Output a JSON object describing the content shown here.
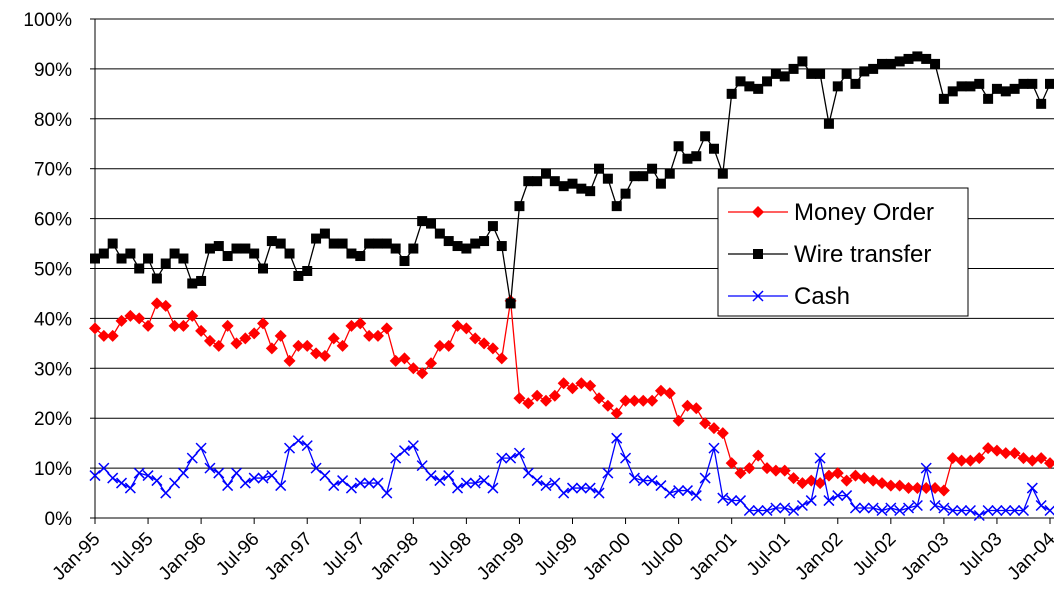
{
  "chart_data": {
    "type": "line",
    "categories": [
      "Jan-95",
      null,
      null,
      null,
      null,
      null,
      "Jul-95",
      null,
      null,
      null,
      null,
      null,
      "Jan-96",
      null,
      null,
      null,
      null,
      null,
      "Jul-96",
      null,
      null,
      null,
      null,
      null,
      "Jan-97",
      null,
      null,
      null,
      null,
      null,
      "Jul-97",
      null,
      null,
      null,
      null,
      null,
      "Jan-98",
      null,
      null,
      null,
      null,
      null,
      "Jul-98",
      null,
      null,
      null,
      null,
      null,
      "Jan-99",
      null,
      null,
      null,
      null,
      null,
      "Jul-99",
      null,
      null,
      null,
      null,
      null,
      "Jan-00",
      null,
      null,
      null,
      null,
      null,
      "Jul-00",
      null,
      null,
      null,
      null,
      null,
      "Jan-01",
      null,
      null,
      null,
      null,
      null,
      "Jul-01",
      null,
      null,
      null,
      null,
      null,
      "Jan-02",
      null,
      null,
      null,
      null,
      null,
      "Jul-02",
      null,
      null,
      null,
      null,
      null,
      "Jan-03",
      null,
      null,
      null,
      null,
      null,
      "Jul-03",
      null,
      null,
      null,
      null,
      null,
      "Jan-04"
    ],
    "series": [
      {
        "name": "Money Order",
        "color": "#ff0000",
        "marker": "diamond",
        "values": [
          38,
          36.5,
          36.5,
          39.5,
          40.5,
          40,
          38.5,
          43,
          42.5,
          38.5,
          38.5,
          40.5,
          37.5,
          35.5,
          34.5,
          38.5,
          35,
          36,
          37,
          39,
          34,
          36.5,
          31.5,
          34.5,
          34.5,
          33,
          32.5,
          36,
          34.5,
          38.5,
          39,
          36.5,
          36.5,
          38,
          31.5,
          32,
          30,
          29,
          31,
          34.5,
          34.5,
          38.5,
          38,
          36,
          35,
          34,
          32,
          43.5,
          24,
          23,
          24.5,
          23.5,
          24.5,
          27,
          26,
          27,
          26.5,
          24,
          22.5,
          21,
          23.5,
          23.5,
          23.5,
          23.5,
          25.5,
          25,
          19.5,
          22.5,
          22,
          19,
          18,
          17,
          11,
          9,
          10,
          12.5,
          10,
          9.5,
          9.5,
          8,
          7,
          7.5,
          7,
          8.5,
          9,
          7.5,
          8.5,
          8,
          7.5,
          7,
          6.5,
          6.5,
          6,
          6,
          6,
          6,
          5.5,
          12,
          11.5,
          11.5,
          12,
          14,
          13.5,
          13,
          13,
          12,
          11.5,
          12,
          11
        ]
      },
      {
        "name": "Wire transfer",
        "color": "#000000",
        "marker": "square",
        "values": [
          52,
          53,
          55,
          52,
          53,
          50,
          52,
          48,
          51,
          53,
          52,
          47,
          47.5,
          54,
          54.5,
          52.5,
          54,
          54,
          53,
          50,
          55.5,
          55,
          53,
          48.5,
          49.5,
          56,
          57,
          55,
          55,
          53,
          52.5,
          55,
          55,
          55,
          54,
          51.5,
          54,
          59.5,
          59,
          57,
          55.5,
          54.5,
          54,
          55,
          55.5,
          58.5,
          54.5,
          43,
          62.5,
          67.5,
          67.5,
          69,
          67.5,
          66.5,
          67,
          66,
          65.5,
          70,
          68,
          62.5,
          65,
          68.5,
          68.5,
          70,
          67,
          69,
          74.5,
          72,
          72.5,
          76.5,
          74,
          69,
          85,
          87.5,
          86.5,
          86,
          87.5,
          89,
          88.5,
          90,
          91.5,
          89,
          89,
          79,
          86.5,
          89,
          87,
          89.5,
          90,
          91,
          91,
          91.5,
          92,
          92.5,
          92,
          91,
          84,
          85.5,
          86.5,
          86.5,
          87,
          84,
          86,
          85.5,
          86,
          87,
          87,
          83,
          87
        ]
      },
      {
        "name": "Cash",
        "color": "#0000ff",
        "marker": "x",
        "values": [
          8.5,
          10,
          8,
          7,
          6,
          9,
          8.5,
          7.5,
          5,
          7,
          9,
          12,
          14,
          10,
          9,
          6.5,
          9,
          7,
          8,
          8,
          8.5,
          6.5,
          14,
          15.5,
          14.5,
          10,
          8.5,
          6.5,
          7.5,
          6,
          7,
          7,
          7,
          5,
          12,
          13.5,
          14.5,
          10.5,
          8.5,
          7.5,
          8.5,
          6,
          7,
          7,
          7.5,
          6,
          12,
          12,
          13,
          9,
          7.5,
          6.5,
          7,
          5,
          6,
          6,
          6,
          5,
          9,
          16,
          12,
          8,
          7.5,
          7.5,
          6.5,
          5,
          5.5,
          5.5,
          4.5,
          8,
          14,
          4,
          3.5,
          3.5,
          1.5,
          1.5,
          1.5,
          2,
          2,
          1.5,
          2.5,
          3.5,
          12,
          3.5,
          4.5,
          4.5,
          2,
          2,
          2,
          1.5,
          2,
          1.5,
          2,
          2.5,
          10,
          2.5,
          2,
          1.5,
          1.5,
          1.5,
          0.5,
          1.5,
          1.5,
          1.5,
          1.5,
          1.5,
          6,
          2.5,
          1.5
        ]
      }
    ],
    "ylim": [
      0,
      100
    ],
    "yticks": [
      {
        "value": 0,
        "label": "0%"
      },
      {
        "value": 10,
        "label": "10%"
      },
      {
        "value": 20,
        "label": "20%"
      },
      {
        "value": 30,
        "label": "30%"
      },
      {
        "value": 40,
        "label": "40%"
      },
      {
        "value": 50,
        "label": "50%"
      },
      {
        "value": 60,
        "label": "60%"
      },
      {
        "value": 70,
        "label": "70%"
      },
      {
        "value": 80,
        "label": "80%"
      },
      {
        "value": 90,
        "label": "90%"
      },
      {
        "value": 100,
        "label": "100%"
      }
    ],
    "grid": true,
    "legend": "right"
  }
}
